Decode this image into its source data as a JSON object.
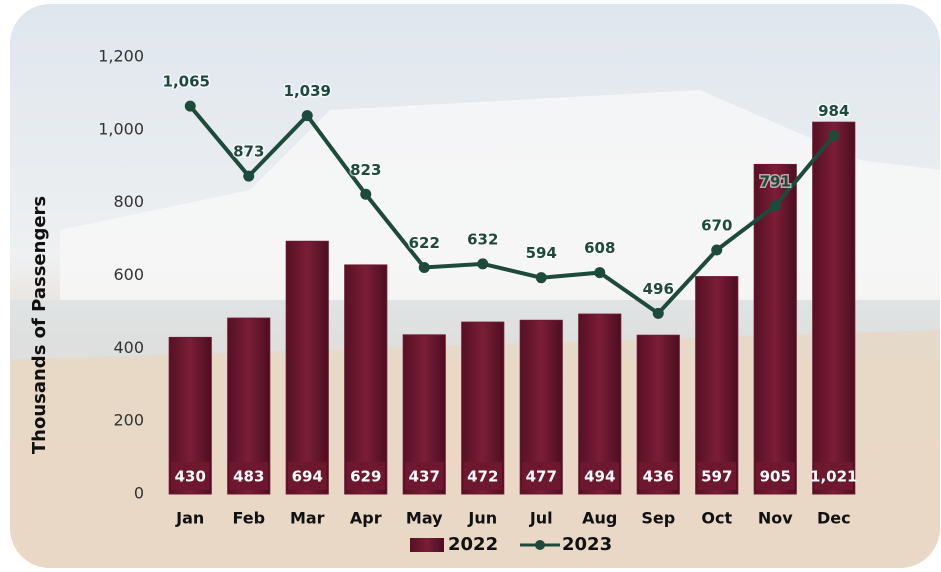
{
  "chart_data": {
    "type": "bar",
    "y_label": "Thousands of Passengers",
    "categories": [
      "Jan",
      "Feb",
      "Mar",
      "Apr",
      "May",
      "Jun",
      "Jul",
      "Aug",
      "Sep",
      "Oct",
      "Nov",
      "Dec"
    ],
    "series": [
      {
        "name": "2022",
        "type": "bar",
        "color": "#6e1830",
        "values": [
          430,
          483,
          694,
          629,
          437,
          472,
          477,
          494,
          436,
          597,
          905,
          1021
        ],
        "value_labels": [
          "430",
          "483",
          "694",
          "629",
          "437",
          "472",
          "477",
          "494",
          "436",
          "597",
          "905",
          "1,021"
        ]
      },
      {
        "name": "2023",
        "type": "line",
        "color": "#1d4a3b",
        "values": [
          1065,
          873,
          1039,
          823,
          622,
          632,
          594,
          608,
          496,
          670,
          791,
          984
        ],
        "value_labels": [
          "1,065",
          "873",
          "1,039",
          "823",
          "622",
          "632",
          "594",
          "608",
          "496",
          "670",
          "791",
          "984"
        ]
      }
    ],
    "ylim": [
      0,
      1200
    ],
    "yticks": [
      0,
      200,
      400,
      600,
      800,
      {
        "value": 1000,
        "label": "1,000"
      },
      {
        "value": 1200,
        "label": "1,200"
      }
    ],
    "grid": false,
    "legend": "bottom"
  }
}
